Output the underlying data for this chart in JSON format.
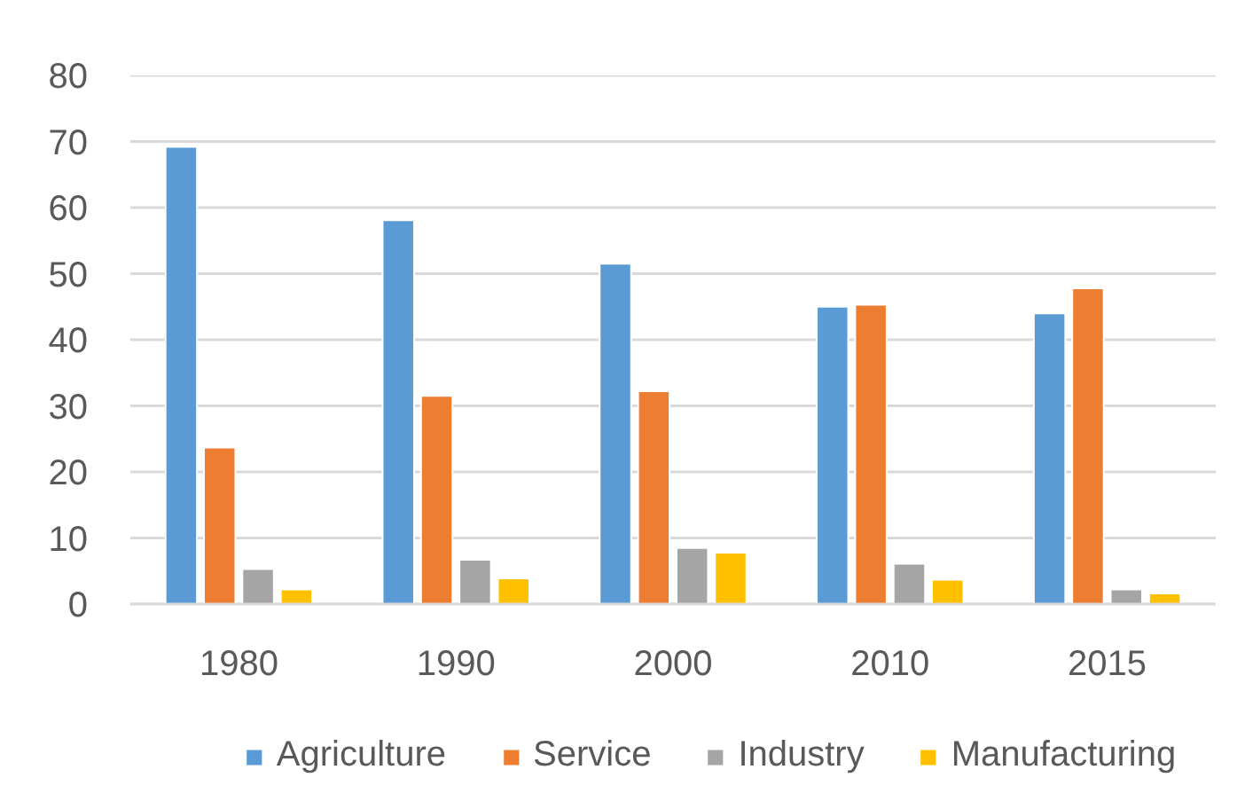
{
  "chart_data": {
    "type": "bar",
    "categories": [
      "1980",
      "1990",
      "2000",
      "2010",
      "2015"
    ],
    "series": [
      {
        "name": "Agriculture",
        "color": "#5b9bd5",
        "values": [
          69.2,
          58.1,
          51.5,
          45.0,
          44.0
        ]
      },
      {
        "name": "Service",
        "color": "#ed7d31",
        "values": [
          23.7,
          31.5,
          32.2,
          45.3,
          47.8
        ]
      },
      {
        "name": "Industry",
        "color": "#a5a5a5",
        "values": [
          5.3,
          6.7,
          8.5,
          6.1,
          2.2
        ]
      },
      {
        "name": "Manufacturing",
        "color": "#ffc000",
        "values": [
          2.2,
          3.9,
          7.8,
          3.7,
          1.6
        ]
      }
    ],
    "ylim": [
      0,
      80
    ],
    "yticks": [
      0,
      10,
      20,
      30,
      40,
      50,
      60,
      70,
      80
    ],
    "grid": "y",
    "legend": "bottom"
  }
}
